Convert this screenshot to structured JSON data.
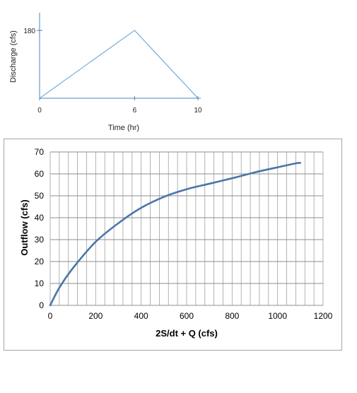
{
  "chart_data": [
    {
      "type": "line",
      "xlabel": "Time (hr)",
      "ylabel": "Discharge (cfs)",
      "x_ticks": [
        0,
        6,
        10
      ],
      "y_ticks": [
        180
      ],
      "xlim": [
        0,
        10
      ],
      "ylim": [
        0,
        180
      ],
      "grid": false,
      "series": [
        {
          "x": [
            0,
            6,
            10
          ],
          "y": [
            0,
            180,
            0
          ]
        }
      ],
      "colors": {
        "line": "#5b9bd5",
        "axis": "#4f81bd"
      }
    },
    {
      "type": "line",
      "xlabel": "2S/dt + Q (cfs)",
      "ylabel": "Outflow (cfs)",
      "x_ticks": [
        0,
        200,
        400,
        600,
        800,
        1000,
        1200
      ],
      "y_ticks": [
        0,
        10,
        20,
        30,
        40,
        50,
        60,
        70
      ],
      "xlim": [
        0,
        1200
      ],
      "ylim": [
        0,
        70
      ],
      "grid": true,
      "series": [
        {
          "x": [
            0,
            40,
            100,
            200,
            300,
            400,
            500,
            600,
            700,
            800,
            900,
            1000,
            1080,
            1100
          ],
          "y": [
            0,
            8,
            17,
            29,
            37.5,
            44.5,
            49.5,
            53,
            55.5,
            58,
            60.7,
            63,
            64.8,
            65
          ]
        }
      ],
      "colors": {
        "line": "#4a76a8"
      }
    }
  ]
}
